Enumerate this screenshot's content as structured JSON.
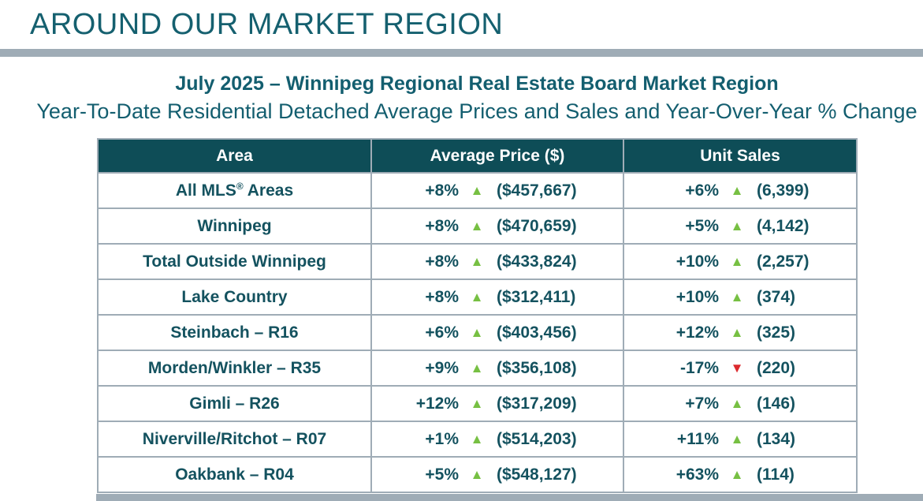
{
  "slide": {
    "title": "AROUND OUR MARKET REGION",
    "subtitle_bold": "July 2025 – Winnipeg Regional Real Estate Board Market Region",
    "subtitle": "Year-To-Date Residential Detached Average Prices and Sales and Year-Over-Year % Change"
  },
  "colors": {
    "teal_title": "#15606F",
    "teal_heading": "#135E6F",
    "teal_cell": "#14525F",
    "header_bg": "#0E4D57",
    "grid_gray": "#9FACB6",
    "up_green": "#77C043",
    "down_red": "#DC2A2E"
  },
  "icons": {
    "up": "▲",
    "down": "▼"
  },
  "table": {
    "columns": [
      "Area",
      "Average Price ($)",
      "Unit Sales"
    ],
    "rows": [
      {
        "area_pre": "All MLS",
        "area_sup": "®",
        "area_post": " Areas",
        "price_pct": "+8%",
        "price_dir": "up",
        "price_value": "($457,667)",
        "sales_pct": "+6%",
        "sales_dir": "up",
        "sales_value": "(6,399)"
      },
      {
        "area_pre": "Winnipeg",
        "area_sup": "",
        "area_post": "",
        "price_pct": "+8%",
        "price_dir": "up",
        "price_value": "($470,659)",
        "sales_pct": "+5%",
        "sales_dir": "up",
        "sales_value": "(4,142)"
      },
      {
        "area_pre": "Total Outside Winnipeg",
        "area_sup": "",
        "area_post": "",
        "price_pct": "+8%",
        "price_dir": "up",
        "price_value": "($433,824)",
        "sales_pct": "+10%",
        "sales_dir": "up",
        "sales_value": "(2,257)"
      },
      {
        "area_pre": "Lake Country",
        "area_sup": "",
        "area_post": "",
        "price_pct": "+8%",
        "price_dir": "up",
        "price_value": "($312,411)",
        "sales_pct": "+10%",
        "sales_dir": "up",
        "sales_value": "(374)"
      },
      {
        "area_pre": "Steinbach – R16",
        "area_sup": "",
        "area_post": "",
        "price_pct": "+6%",
        "price_dir": "up",
        "price_value": "($403,456)",
        "sales_pct": "+12%",
        "sales_dir": "up",
        "sales_value": "(325)"
      },
      {
        "area_pre": "Morden/Winkler – R35",
        "area_sup": "",
        "area_post": "",
        "price_pct": "+9%",
        "price_dir": "up",
        "price_value": "($356,108)",
        "sales_pct": "-17%",
        "sales_dir": "down",
        "sales_value": "(220)"
      },
      {
        "area_pre": "Gimli – R26",
        "area_sup": "",
        "area_post": "",
        "price_pct": "+12%",
        "price_dir": "up",
        "price_value": "($317,209)",
        "sales_pct": "+7%",
        "sales_dir": "up",
        "sales_value": "(146)"
      },
      {
        "area_pre": "Niverville/Ritchot – R07",
        "area_sup": "",
        "area_post": "",
        "price_pct": "+1%",
        "price_dir": "up",
        "price_value": "($514,203)",
        "sales_pct": "+11%",
        "sales_dir": "up",
        "sales_value": "(134)"
      },
      {
        "area_pre": "Oakbank – R04",
        "area_sup": "",
        "area_post": "",
        "price_pct": "+5%",
        "price_dir": "up",
        "price_value": "($548,127)",
        "sales_pct": "+63%",
        "sales_dir": "up",
        "sales_value": "(114)"
      }
    ]
  }
}
